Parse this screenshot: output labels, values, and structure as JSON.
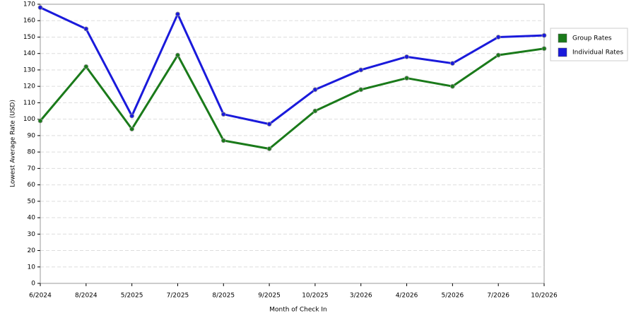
{
  "chart_data": {
    "type": "line",
    "x_label": "Month of Check In",
    "y_label": "Lowest Average Rate (USD)",
    "categories": [
      "6/2024",
      "8/2024",
      "5/2025",
      "7/2025",
      "8/2025",
      "9/2025",
      "10/2025",
      "3/2026",
      "4/2026",
      "5/2026",
      "7/2026",
      "10/2026"
    ],
    "series": [
      {
        "name": "Group Rates",
        "color": "#1a7a1a",
        "values": [
          99,
          132,
          94,
          139,
          87,
          82,
          105,
          118,
          125,
          120,
          139,
          143
        ]
      },
      {
        "name": "Individual Rates",
        "color": "#1a1adb",
        "values": [
          168,
          155,
          102,
          164,
          103,
          97,
          118,
          130,
          138,
          134,
          150,
          151
        ]
      }
    ],
    "ylim": [
      0,
      170
    ],
    "yticks": [
      0,
      10,
      20,
      30,
      40,
      50,
      60,
      70,
      80,
      90,
      100,
      110,
      120,
      130,
      140,
      150,
      160,
      170
    ],
    "grid": true,
    "legend": "right"
  }
}
